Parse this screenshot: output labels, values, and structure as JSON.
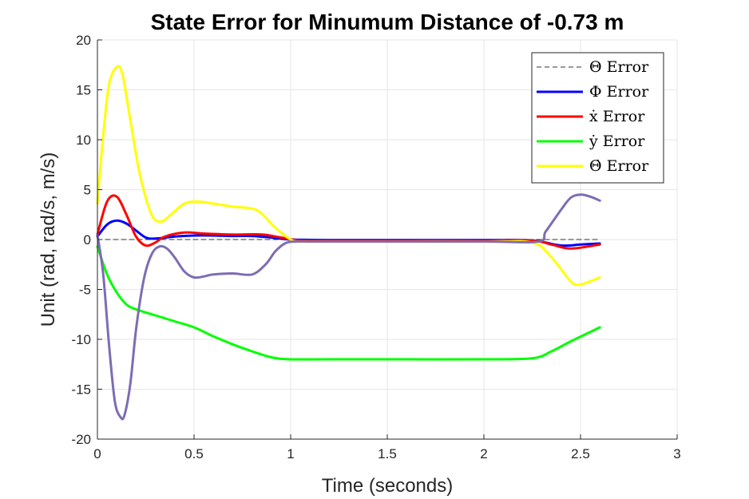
{
  "chart_data": {
    "type": "line",
    "title": "State Error for Minumum Distance of -0.73 m",
    "xlabel": "Time (seconds)",
    "ylabel": "Unit (rad, rad/s, m/s)",
    "xlim": [
      0,
      3
    ],
    "ylim": [
      -20,
      20
    ],
    "xticks": [
      0,
      0.5,
      1,
      1.5,
      2,
      2.5,
      3
    ],
    "xtick_labels": [
      "0",
      "0.5",
      "1",
      "1.5",
      "2",
      "2.5",
      "3"
    ],
    "yticks": [
      -20,
      -15,
      -10,
      -5,
      0,
      5,
      10,
      15,
      20
    ],
    "ytick_labels": [
      "-20",
      "-15",
      "-10",
      "-5",
      "0",
      "5",
      "10",
      "15",
      "20"
    ],
    "grid": true,
    "legend_position": "top-right",
    "series": [
      {
        "name": "Θ Error",
        "color": "#333333",
        "dash": true,
        "x": [
          0,
          2.6
        ],
        "y": [
          0,
          0
        ]
      },
      {
        "name": "Φ Error",
        "color": "#0000ff",
        "dash": false,
        "x": [
          0,
          0.05,
          0.1,
          0.15,
          0.2,
          0.25,
          0.3,
          0.4,
          0.5,
          0.6,
          0.7,
          0.8,
          0.9,
          1.0,
          1.2,
          1.5,
          2.0,
          2.25,
          2.4,
          2.5,
          2.6
        ],
        "y": [
          0.3,
          1.5,
          1.9,
          1.6,
          0.9,
          0.2,
          0.1,
          0.3,
          0.4,
          0.4,
          0.35,
          0.35,
          0.2,
          0.0,
          -0.05,
          -0.05,
          -0.05,
          -0.1,
          -0.6,
          -0.5,
          -0.4
        ]
      },
      {
        "name": "ẋ Error",
        "color": "#ff0000",
        "dash": false,
        "x": [
          0,
          0.05,
          0.1,
          0.15,
          0.2,
          0.25,
          0.3,
          0.35,
          0.45,
          0.55,
          0.7,
          0.85,
          0.95,
          1.05,
          1.2,
          1.5,
          2.0,
          2.25,
          2.35,
          2.45,
          2.6
        ],
        "y": [
          0.5,
          3.8,
          4.3,
          2.5,
          0.3,
          -0.6,
          -0.3,
          0.3,
          0.7,
          0.6,
          0.5,
          0.5,
          0.2,
          -0.1,
          -0.1,
          -0.1,
          -0.1,
          -0.1,
          -0.5,
          -0.9,
          -0.5
        ]
      },
      {
        "name": "ẏ Error",
        "color": "#00ff00",
        "dash": false,
        "x": [
          0,
          0.05,
          0.1,
          0.15,
          0.2,
          0.3,
          0.4,
          0.5,
          0.6,
          0.7,
          0.8,
          0.9,
          1.0,
          1.2,
          1.5,
          2.0,
          2.25,
          2.35,
          2.45,
          2.6
        ],
        "y": [
          -0.7,
          -3.5,
          -5.3,
          -6.5,
          -7.0,
          -7.6,
          -8.2,
          -8.8,
          -9.7,
          -10.5,
          -11.2,
          -11.8,
          -12.0,
          -12.0,
          -12.0,
          -12.0,
          -11.9,
          -11.2,
          -10.2,
          -8.8
        ]
      },
      {
        "name": "Θ̇ Error",
        "color": "#ffff00",
        "dash": false,
        "x": [
          0,
          0.03,
          0.06,
          0.1,
          0.13,
          0.17,
          0.22,
          0.28,
          0.33,
          0.38,
          0.45,
          0.52,
          0.6,
          0.7,
          0.8,
          0.85,
          0.92,
          1.0,
          1.05,
          1.2,
          1.5,
          2.0,
          2.25,
          2.35,
          2.45,
          2.5,
          2.6
        ],
        "y": [
          3.6,
          10.5,
          15.5,
          17.3,
          16.5,
          12.0,
          6.5,
          2.5,
          1.8,
          2.5,
          3.6,
          3.8,
          3.6,
          3.3,
          3.1,
          2.6,
          1.2,
          0.0,
          -0.2,
          -0.2,
          -0.2,
          -0.2,
          -0.3,
          -1.8,
          -4.2,
          -4.5,
          -3.8
        ]
      },
      {
        "name": "",
        "color": "#7e6cb3",
        "dash": false,
        "x": [
          0,
          0.03,
          0.06,
          0.09,
          0.12,
          0.14,
          0.17,
          0.2,
          0.24,
          0.28,
          0.32,
          0.36,
          0.4,
          0.45,
          0.5,
          0.55,
          0.6,
          0.7,
          0.8,
          0.87,
          0.92,
          0.97,
          1.02,
          1.1,
          1.2,
          1.5,
          2.0,
          2.28,
          2.32,
          2.4,
          2.45,
          2.5,
          2.55,
          2.6
        ],
        "y": [
          0.5,
          -3.5,
          -10.5,
          -16.2,
          -17.8,
          -17.6,
          -14.5,
          -9.0,
          -4.0,
          -1.5,
          -0.7,
          -0.9,
          -1.8,
          -3.2,
          -3.8,
          -3.7,
          -3.5,
          -3.4,
          -3.5,
          -2.5,
          -1.2,
          -0.4,
          -0.2,
          -0.2,
          -0.2,
          -0.2,
          -0.2,
          -0.2,
          0.8,
          3.0,
          4.2,
          4.5,
          4.3,
          3.9
        ]
      }
    ]
  }
}
